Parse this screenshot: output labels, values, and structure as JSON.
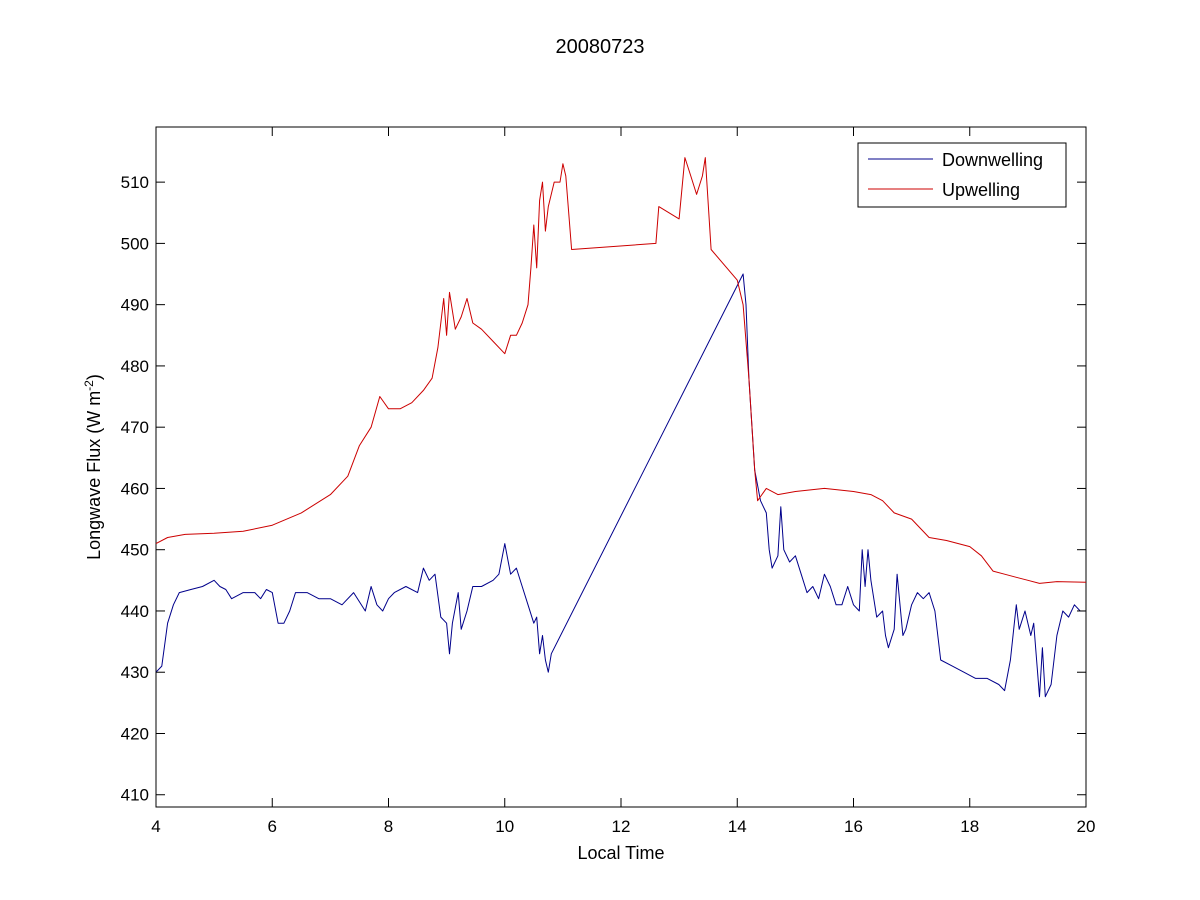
{
  "chart_data": {
    "type": "line",
    "title": "20080723",
    "xlabel": "Local Time",
    "ylabel": {
      "main": "Longwave Flux (W m",
      "exponent": "-2",
      "close": ")"
    },
    "xlim": [
      4,
      20
    ],
    "ylim": [
      408,
      519
    ],
    "xticks": [
      4,
      6,
      8,
      10,
      12,
      14,
      16,
      18,
      20
    ],
    "yticks": [
      410,
      420,
      430,
      440,
      450,
      460,
      470,
      480,
      490,
      500,
      510
    ],
    "grid": false,
    "legend_position": "top-right",
    "series": [
      {
        "name": "Downwelling",
        "color": "#00008b",
        "points": [
          [
            4.0,
            430
          ],
          [
            4.1,
            431
          ],
          [
            4.2,
            438
          ],
          [
            4.3,
            441
          ],
          [
            4.4,
            443
          ],
          [
            4.6,
            443.5
          ],
          [
            4.8,
            444
          ],
          [
            5.0,
            445
          ],
          [
            5.1,
            444
          ],
          [
            5.2,
            443.5
          ],
          [
            5.3,
            442
          ],
          [
            5.5,
            443
          ],
          [
            5.7,
            443
          ],
          [
            5.8,
            442
          ],
          [
            5.9,
            443.5
          ],
          [
            6.0,
            443
          ],
          [
            6.1,
            438
          ],
          [
            6.2,
            438
          ],
          [
            6.3,
            440
          ],
          [
            6.4,
            443
          ],
          [
            6.6,
            443
          ],
          [
            6.8,
            442
          ],
          [
            7.0,
            442
          ],
          [
            7.2,
            441
          ],
          [
            7.4,
            443
          ],
          [
            7.6,
            440
          ],
          [
            7.7,
            444
          ],
          [
            7.8,
            441
          ],
          [
            7.9,
            440
          ],
          [
            8.0,
            442
          ],
          [
            8.1,
            443
          ],
          [
            8.3,
            444
          ],
          [
            8.5,
            443
          ],
          [
            8.6,
            447
          ],
          [
            8.7,
            445
          ],
          [
            8.8,
            446
          ],
          [
            8.9,
            439
          ],
          [
            9.0,
            438
          ],
          [
            9.05,
            433
          ],
          [
            9.1,
            438
          ],
          [
            9.2,
            443
          ],
          [
            9.25,
            437
          ],
          [
            9.35,
            440
          ],
          [
            9.45,
            444
          ],
          [
            9.6,
            444
          ],
          [
            9.8,
            445
          ],
          [
            9.9,
            446
          ],
          [
            10.0,
            451
          ],
          [
            10.1,
            446
          ],
          [
            10.2,
            447
          ],
          [
            10.3,
            444
          ],
          [
            10.4,
            441
          ],
          [
            10.5,
            438
          ],
          [
            10.55,
            439
          ],
          [
            10.6,
            433
          ],
          [
            10.65,
            436
          ],
          [
            10.7,
            432
          ],
          [
            10.75,
            430
          ],
          [
            10.8,
            433
          ],
          [
            14.1,
            495
          ],
          [
            14.15,
            490
          ],
          [
            14.2,
            478
          ],
          [
            14.3,
            463
          ],
          [
            14.4,
            458
          ],
          [
            14.5,
            456
          ],
          [
            14.55,
            450
          ],
          [
            14.6,
            447
          ],
          [
            14.7,
            449
          ],
          [
            14.75,
            457
          ],
          [
            14.8,
            450
          ],
          [
            14.9,
            448
          ],
          [
            15.0,
            449
          ],
          [
            15.1,
            446
          ],
          [
            15.2,
            443
          ],
          [
            15.3,
            444
          ],
          [
            15.4,
            442
          ],
          [
            15.5,
            446
          ],
          [
            15.6,
            444
          ],
          [
            15.7,
            441
          ],
          [
            15.8,
            441
          ],
          [
            15.9,
            444
          ],
          [
            16.0,
            441
          ],
          [
            16.1,
            440
          ],
          [
            16.15,
            450
          ],
          [
            16.2,
            444
          ],
          [
            16.25,
            450
          ],
          [
            16.3,
            445
          ],
          [
            16.4,
            439
          ],
          [
            16.5,
            440
          ],
          [
            16.55,
            436
          ],
          [
            16.6,
            434
          ],
          [
            16.7,
            437
          ],
          [
            16.75,
            446
          ],
          [
            16.8,
            441
          ],
          [
            16.85,
            436
          ],
          [
            16.9,
            437
          ],
          [
            17.0,
            441
          ],
          [
            17.1,
            443
          ],
          [
            17.2,
            442
          ],
          [
            17.3,
            443
          ],
          [
            17.4,
            440
          ],
          [
            17.5,
            432
          ],
          [
            17.7,
            431
          ],
          [
            17.9,
            430
          ],
          [
            18.1,
            429
          ],
          [
            18.3,
            429
          ],
          [
            18.5,
            428
          ],
          [
            18.6,
            427
          ],
          [
            18.7,
            432
          ],
          [
            18.8,
            441
          ],
          [
            18.85,
            437
          ],
          [
            18.95,
            440
          ],
          [
            19.05,
            436
          ],
          [
            19.1,
            438
          ],
          [
            19.15,
            432
          ],
          [
            19.2,
            426
          ],
          [
            19.25,
            434
          ],
          [
            19.3,
            426
          ],
          [
            19.4,
            428
          ],
          [
            19.5,
            436
          ],
          [
            19.6,
            440
          ],
          [
            19.7,
            439
          ],
          [
            19.8,
            441
          ],
          [
            19.9,
            440
          ],
          [
            20.0,
            440
          ]
        ]
      },
      {
        "name": "Upwelling",
        "color": "#cc0000",
        "points": [
          [
            4.0,
            451
          ],
          [
            4.2,
            452
          ],
          [
            4.5,
            452.5
          ],
          [
            5.0,
            452.7
          ],
          [
            5.5,
            453
          ],
          [
            6.0,
            454
          ],
          [
            6.5,
            456
          ],
          [
            7.0,
            459
          ],
          [
            7.3,
            462
          ],
          [
            7.5,
            467
          ],
          [
            7.7,
            470
          ],
          [
            7.85,
            475
          ],
          [
            8.0,
            473
          ],
          [
            8.2,
            473
          ],
          [
            8.4,
            474
          ],
          [
            8.6,
            476
          ],
          [
            8.75,
            478
          ],
          [
            8.85,
            483
          ],
          [
            8.95,
            491
          ],
          [
            9.0,
            485
          ],
          [
            9.05,
            492
          ],
          [
            9.15,
            486
          ],
          [
            9.25,
            488
          ],
          [
            9.35,
            491
          ],
          [
            9.45,
            487
          ],
          [
            9.6,
            486
          ],
          [
            9.8,
            484
          ],
          [
            10.0,
            482
          ],
          [
            10.1,
            485
          ],
          [
            10.2,
            485
          ],
          [
            10.3,
            487
          ],
          [
            10.4,
            490
          ],
          [
            10.45,
            496
          ],
          [
            10.5,
            503
          ],
          [
            10.55,
            496
          ],
          [
            10.6,
            507
          ],
          [
            10.65,
            510
          ],
          [
            10.7,
            502
          ],
          [
            10.75,
            506
          ],
          [
            10.85,
            510
          ],
          [
            10.95,
            510
          ],
          [
            11.0,
            513
          ],
          [
            11.05,
            511
          ],
          [
            11.15,
            499
          ],
          [
            12.6,
            500
          ],
          [
            12.65,
            506
          ],
          [
            13.0,
            504
          ],
          [
            13.1,
            514
          ],
          [
            13.2,
            511
          ],
          [
            13.3,
            508
          ],
          [
            13.4,
            511
          ],
          [
            13.45,
            514
          ],
          [
            13.55,
            499
          ],
          [
            14.0,
            494
          ],
          [
            14.1,
            490
          ],
          [
            14.2,
            478
          ],
          [
            14.3,
            463
          ],
          [
            14.35,
            458
          ],
          [
            14.5,
            460
          ],
          [
            14.7,
            459
          ],
          [
            15.0,
            459.5
          ],
          [
            15.5,
            460
          ],
          [
            16.0,
            459.5
          ],
          [
            16.3,
            459
          ],
          [
            16.5,
            458
          ],
          [
            16.7,
            456
          ],
          [
            17.0,
            455
          ],
          [
            17.3,
            452
          ],
          [
            17.6,
            451.5
          ],
          [
            18.0,
            450.5
          ],
          [
            18.2,
            449
          ],
          [
            18.4,
            446.5
          ],
          [
            18.6,
            446
          ],
          [
            18.8,
            445.5
          ],
          [
            19.0,
            445
          ],
          [
            19.2,
            444.5
          ],
          [
            19.5,
            444.8
          ],
          [
            20.0,
            444.7
          ]
        ]
      }
    ]
  }
}
